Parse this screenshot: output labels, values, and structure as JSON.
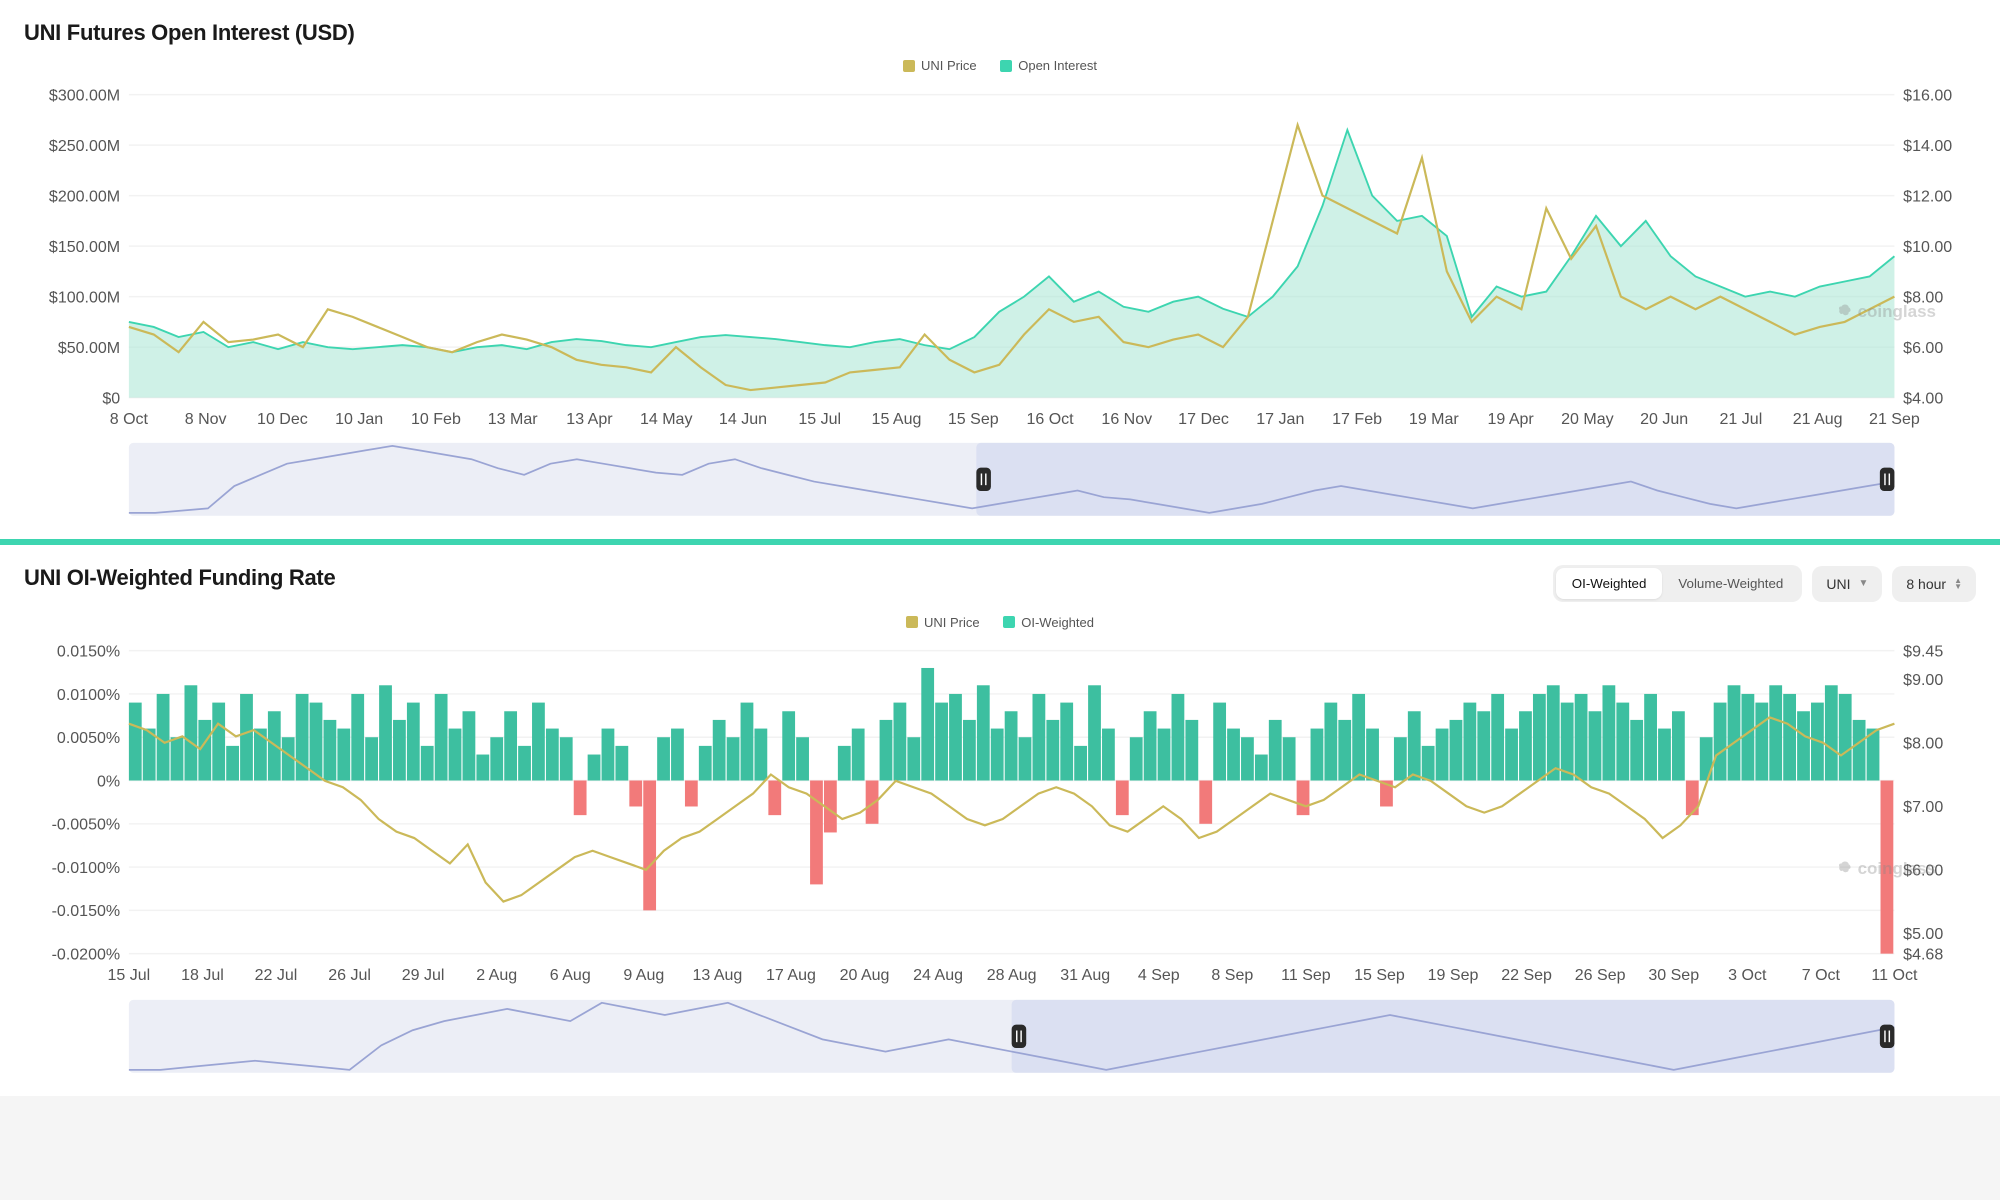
{
  "panel1": {
    "title": "UNI Futures Open Interest (USD)",
    "legend": [
      {
        "label": "UNI Price",
        "color": "#cbb959"
      },
      {
        "label": "Open Interest",
        "color": "#3dd5b0"
      }
    ],
    "watermark": "coinglass",
    "chart": {
      "type": "area+line",
      "background_color": "#ffffff",
      "grid_color": "#f2f2f2",
      "line_price_color": "#cbb959",
      "area_oi_fill": "#a8e6d4",
      "area_oi_stroke": "#3dd5b0",
      "y_left": {
        "min": 0,
        "max": 300,
        "ticks": [
          "$0",
          "$50.00M",
          "$100.00M",
          "$150.00M",
          "$200.00M",
          "$250.00M",
          "$300.00M"
        ]
      },
      "y_right": {
        "min": 4,
        "max": 16,
        "ticks": [
          "$4.00",
          "$6.00",
          "$8.00",
          "$10.00",
          "$12.00",
          "$14.00",
          "$16.00"
        ]
      },
      "x_labels": [
        "8 Oct",
        "8 Nov",
        "10 Dec",
        "10 Jan",
        "10 Feb",
        "13 Mar",
        "13 Apr",
        "14 May",
        "14 Jun",
        "15 Jul",
        "15 Aug",
        "15 Sep",
        "16 Oct",
        "16 Nov",
        "17 Dec",
        "17 Jan",
        "17 Feb",
        "19 Mar",
        "19 Apr",
        "20 May",
        "20 Jun",
        "21 Jul",
        "21 Aug",
        "21 Sep"
      ],
      "oi_values": [
        75,
        70,
        60,
        65,
        50,
        55,
        48,
        55,
        50,
        48,
        50,
        52,
        50,
        45,
        50,
        52,
        48,
        55,
        58,
        56,
        52,
        50,
        55,
        60,
        62,
        60,
        58,
        55,
        52,
        50,
        55,
        58,
        52,
        48,
        60,
        85,
        100,
        120,
        95,
        105,
        90,
        85,
        95,
        100,
        88,
        80,
        100,
        130,
        190,
        265,
        200,
        175,
        180,
        160,
        80,
        110,
        100,
        105,
        140,
        180,
        150,
        175,
        140,
        120,
        110,
        100,
        105,
        100,
        110,
        115,
        120,
        140
      ],
      "price_values": [
        6.8,
        6.5,
        5.8,
        7.0,
        6.2,
        6.3,
        6.5,
        6.0,
        7.5,
        7.2,
        6.8,
        6.4,
        6.0,
        5.8,
        6.2,
        6.5,
        6.3,
        6.0,
        5.5,
        5.3,
        5.2,
        5.0,
        6.0,
        5.2,
        4.5,
        4.3,
        4.4,
        4.5,
        4.6,
        5.0,
        5.1,
        5.2,
        6.5,
        5.5,
        5.0,
        5.3,
        6.5,
        7.5,
        7.0,
        7.2,
        6.2,
        6.0,
        6.3,
        6.5,
        6.0,
        7.2,
        11.0,
        14.8,
        12.0,
        11.5,
        11.0,
        10.5,
        13.5,
        9.0,
        7.0,
        8.0,
        7.5,
        11.5,
        9.5,
        10.8,
        8.0,
        7.5,
        8.0,
        7.5,
        8.0,
        7.5,
        7.0,
        6.5,
        6.8,
        7.0,
        7.5,
        8.0
      ],
      "brush": {
        "selected_start": 0.48,
        "selected_end": 1.0,
        "bg": "#eceef6",
        "sel_bg": "#dbe0f2",
        "line_color": "#9aa4d4",
        "values": [
          18,
          18,
          19,
          20,
          30,
          35,
          40,
          42,
          44,
          46,
          48,
          46,
          44,
          42,
          38,
          35,
          40,
          42,
          40,
          38,
          36,
          35,
          40,
          42,
          38,
          35,
          32,
          30,
          28,
          26,
          24,
          22,
          20,
          22,
          24,
          26,
          28,
          25,
          24,
          22,
          20,
          18,
          20,
          22,
          25,
          28,
          30,
          28,
          26,
          24,
          22,
          20,
          22,
          24,
          26,
          28,
          30,
          32,
          28,
          25,
          22,
          20,
          22,
          24,
          26,
          28,
          30,
          32
        ]
      }
    }
  },
  "panel2": {
    "title": "UNI OI-Weighted Funding Rate",
    "controls": {
      "seg": {
        "options": [
          "OI-Weighted",
          "Volume-Weighted"
        ],
        "active": 0
      },
      "dropdown1": "UNI",
      "dropdown2": "8 hour"
    },
    "legend": [
      {
        "label": "UNI Price",
        "color": "#cbb959"
      },
      {
        "label": "OI-Weighted",
        "color": "#3dd5b0"
      }
    ],
    "watermark": "coinglass",
    "chart": {
      "type": "bar+line",
      "pos_color": "#3dbfa0",
      "neg_color": "#f27a7a",
      "line_price_color": "#cbb959",
      "grid_color": "#f2f2f2",
      "y_left": {
        "min": -0.02,
        "max": 0.015,
        "ticks": [
          "-0.0200%",
          "-0.0150%",
          "-0.0100%",
          "-0.0050%",
          "0%",
          "0.0050%",
          "0.0100%",
          "0.0150%"
        ]
      },
      "y_right": {
        "min": 4.68,
        "max": 9.45,
        "ticks": [
          "$4.68",
          "$5.00",
          "$6.00",
          "$7.00",
          "$8.00",
          "$9.00",
          "$9.45"
        ]
      },
      "x_labels": [
        "15 Jul",
        "18 Jul",
        "22 Jul",
        "26 Jul",
        "29 Jul",
        "2 Aug",
        "6 Aug",
        "9 Aug",
        "13 Aug",
        "17 Aug",
        "20 Aug",
        "24 Aug",
        "28 Aug",
        "31 Aug",
        "4 Sep",
        "8 Sep",
        "11 Sep",
        "15 Sep",
        "19 Sep",
        "22 Sep",
        "26 Sep",
        "30 Sep",
        "3 Oct",
        "7 Oct",
        "11 Oct"
      ],
      "bars": [
        0.009,
        0.006,
        0.01,
        0.005,
        0.011,
        0.007,
        0.009,
        0.004,
        0.01,
        0.006,
        0.008,
        0.005,
        0.01,
        0.009,
        0.007,
        0.006,
        0.01,
        0.005,
        0.011,
        0.007,
        0.009,
        0.004,
        0.01,
        0.006,
        0.008,
        0.003,
        0.005,
        0.008,
        0.004,
        0.009,
        0.006,
        0.005,
        -0.004,
        0.003,
        0.006,
        0.004,
        -0.003,
        -0.015,
        0.005,
        0.006,
        -0.003,
        0.004,
        0.007,
        0.005,
        0.009,
        0.006,
        -0.004,
        0.008,
        0.005,
        -0.012,
        -0.006,
        0.004,
        0.006,
        -0.005,
        0.007,
        0.009,
        0.005,
        0.013,
        0.009,
        0.01,
        0.007,
        0.011,
        0.006,
        0.008,
        0.005,
        0.01,
        0.007,
        0.009,
        0.004,
        0.011,
        0.006,
        -0.004,
        0.005,
        0.008,
        0.006,
        0.01,
        0.007,
        -0.005,
        0.009,
        0.006,
        0.005,
        0.003,
        0.007,
        0.005,
        -0.004,
        0.006,
        0.009,
        0.007,
        0.01,
        0.006,
        -0.003,
        0.005,
        0.008,
        0.004,
        0.006,
        0.007,
        0.009,
        0.008,
        0.01,
        0.006,
        0.008,
        0.01,
        0.011,
        0.009,
        0.01,
        0.008,
        0.011,
        0.009,
        0.007,
        0.01,
        0.006,
        0.008,
        -0.004,
        0.005,
        0.009,
        0.011,
        0.01,
        0.009,
        0.011,
        0.01,
        0.008,
        0.009,
        0.011,
        0.01,
        0.007,
        0.006,
        -0.02
      ],
      "price_values": [
        8.3,
        8.2,
        8.0,
        8.1,
        7.9,
        8.3,
        8.1,
        8.2,
        8.0,
        7.8,
        7.6,
        7.4,
        7.3,
        7.1,
        6.8,
        6.6,
        6.5,
        6.3,
        6.1,
        6.4,
        5.8,
        5.5,
        5.6,
        5.8,
        6.0,
        6.2,
        6.3,
        6.2,
        6.1,
        6.0,
        6.3,
        6.5,
        6.6,
        6.8,
        7.0,
        7.2,
        7.5,
        7.3,
        7.2,
        7.0,
        6.8,
        6.9,
        7.1,
        7.4,
        7.3,
        7.2,
        7.0,
        6.8,
        6.7,
        6.8,
        7.0,
        7.2,
        7.3,
        7.2,
        7.0,
        6.7,
        6.6,
        6.8,
        7.0,
        6.8,
        6.5,
        6.6,
        6.8,
        7.0,
        7.2,
        7.1,
        7.0,
        7.1,
        7.3,
        7.5,
        7.4,
        7.3,
        7.5,
        7.4,
        7.2,
        7.0,
        6.9,
        7.0,
        7.2,
        7.4,
        7.6,
        7.5,
        7.3,
        7.2,
        7.0,
        6.8,
        6.5,
        6.7,
        7.0,
        7.8,
        8.0,
        8.2,
        8.4,
        8.3,
        8.1,
        8.0,
        7.8,
        8.0,
        8.2,
        8.3
      ],
      "brush": {
        "selected_start": 0.5,
        "selected_end": 1.0,
        "bg": "#eceef6",
        "sel_bg": "#dbe0f2",
        "line_color": "#9aa4d4",
        "values": [
          22,
          22,
          23,
          24,
          25,
          24,
          23,
          22,
          30,
          35,
          38,
          40,
          42,
          40,
          38,
          44,
          42,
          40,
          42,
          44,
          40,
          36,
          32,
          30,
          28,
          30,
          32,
          30,
          28,
          26,
          24,
          22,
          24,
          26,
          28,
          30,
          32,
          34,
          36,
          38,
          40,
          38,
          36,
          34,
          32,
          30,
          28,
          26,
          24,
          22,
          24,
          26,
          28,
          30,
          32,
          34,
          36
        ]
      }
    }
  }
}
